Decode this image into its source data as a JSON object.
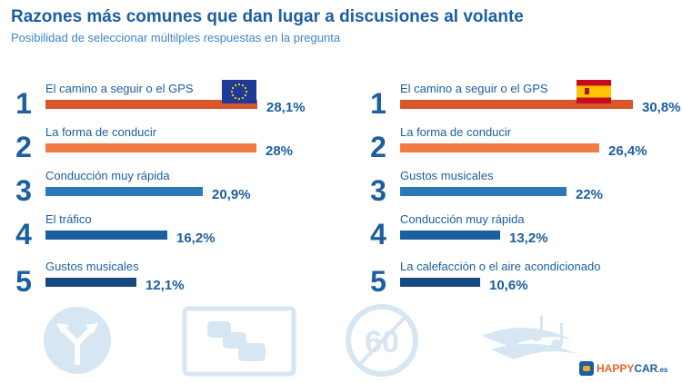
{
  "title": "Razones más comunes que dan lugar a discusiones al volante",
  "subtitle": "Posibilidad de seleccionar múltilples respuestas en la pregunta",
  "colors": {
    "accent": "#1c5fa0",
    "rank1": "#d9552b",
    "rank2": "#f47a45",
    "rank3": "#2b79b8",
    "rank4": "#1c5fa0",
    "rank5": "#16497d",
    "icon_faint": "#d6e6f3"
  },
  "chart_data": [
    {
      "type": "bar",
      "orientation": "horizontal",
      "flag": "eu-flag-icon",
      "categories": [
        "El camino a seguir o el GPS",
        "La forma de conducir",
        "Conducción muy rápida",
        "El tráfico",
        "Gustos musicales"
      ],
      "ranks": [
        "1",
        "2",
        "3",
        "4",
        "5"
      ],
      "values": [
        28.1,
        28,
        20.9,
        16.2,
        12.1
      ],
      "value_labels": [
        "28,1%",
        "28%",
        "20,9%",
        "16,2%",
        "12,1%"
      ],
      "unit": "%"
    },
    {
      "type": "bar",
      "orientation": "horizontal",
      "flag": "spain-flag-icon",
      "categories": [
        "El camino a seguir o el GPS",
        "La forma de conducir",
        "Gustos musicales",
        "Conducción muy rápida",
        "La calefacción o el aire acondicionado"
      ],
      "ranks": [
        "1",
        "2",
        "3",
        "4",
        "5"
      ],
      "values": [
        30.8,
        26.4,
        22,
        13.2,
        10.6
      ],
      "value_labels": [
        "30,8%",
        "26,4%",
        "22%",
        "13,2%",
        "10,6%"
      ],
      "unit": "%"
    }
  ],
  "icons": [
    "fork-arrows-icon",
    "traffic-jam-sign-icon",
    "speed-limit-60-end-icon",
    "music-notes-icon"
  ],
  "logo": {
    "main": "HAPPY",
    "accent": "CAR",
    "suffix": ".es"
  }
}
